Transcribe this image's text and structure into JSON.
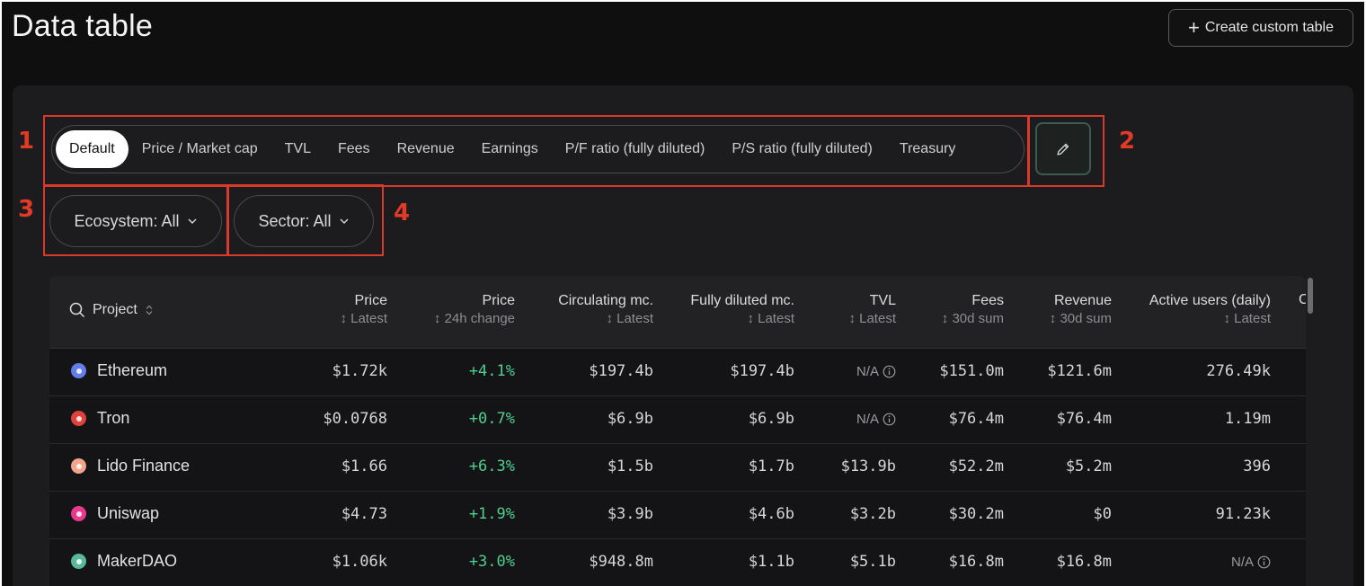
{
  "page": {
    "title": "Data table",
    "create_button": "Create custom table"
  },
  "annotations": [
    "1",
    "2",
    "3",
    "4"
  ],
  "tabs": [
    {
      "label": "Default",
      "active": true
    },
    {
      "label": "Price / Market cap"
    },
    {
      "label": "TVL"
    },
    {
      "label": "Fees"
    },
    {
      "label": "Revenue"
    },
    {
      "label": "Earnings"
    },
    {
      "label": "P/F ratio (fully diluted)"
    },
    {
      "label": "P/S ratio (fully diluted)"
    },
    {
      "label": "Treasury"
    }
  ],
  "filters": {
    "ecosystem": "Ecosystem: All",
    "sector": "Sector: All"
  },
  "table": {
    "columns": [
      {
        "title": "Project"
      },
      {
        "title": "Price",
        "sub": "Latest"
      },
      {
        "title": "Price",
        "sub": "24h change"
      },
      {
        "title": "Circulating mc.",
        "sub": "Latest"
      },
      {
        "title": "Fully diluted mc.",
        "sub": "Latest"
      },
      {
        "title": "TVL",
        "sub": "Latest"
      },
      {
        "title": "Fees",
        "sub": "30d sum"
      },
      {
        "title": "Revenue",
        "sub": "30d sum"
      },
      {
        "title": "Active users (daily)",
        "sub": "Latest"
      }
    ],
    "clipped_column_letter": "C",
    "rows": [
      {
        "name": "Ethereum",
        "icon": "ethereum-icon",
        "color": "#627eea",
        "price": "$1.72k",
        "change": "+4.1%",
        "circ": "$197.4b",
        "fdmc": "$197.4b",
        "tvl": "N/A",
        "fees": "$151.0m",
        "revenue": "$121.6m",
        "users": "276.49k"
      },
      {
        "name": "Tron",
        "icon": "tron-icon",
        "color": "#e0413a",
        "price": "$0.0768",
        "change": "+0.7%",
        "circ": "$6.9b",
        "fdmc": "$6.9b",
        "tvl": "N/A",
        "fees": "$76.4m",
        "revenue": "$76.4m",
        "users": "1.19m"
      },
      {
        "name": "Lido Finance",
        "icon": "lido-icon",
        "color": "#f3a58c",
        "price": "$1.66",
        "change": "+6.3%",
        "circ": "$1.5b",
        "fdmc": "$1.7b",
        "tvl": "$13.9b",
        "fees": "$52.2m",
        "revenue": "$5.2m",
        "users": "396"
      },
      {
        "name": "Uniswap",
        "icon": "uniswap-icon",
        "color": "#e8398d",
        "price": "$4.73",
        "change": "+1.9%",
        "circ": "$3.9b",
        "fdmc": "$4.6b",
        "tvl": "$3.2b",
        "fees": "$30.2m",
        "revenue": "$0",
        "users": "91.23k"
      },
      {
        "name": "MakerDAO",
        "icon": "makerdao-icon",
        "color": "#58b89a",
        "price": "$1.06k",
        "change": "+3.0%",
        "circ": "$948.8m",
        "fdmc": "$1.1b",
        "tvl": "$5.1b",
        "fees": "$16.8m",
        "revenue": "$16.8m",
        "users": "N/A"
      }
    ]
  }
}
